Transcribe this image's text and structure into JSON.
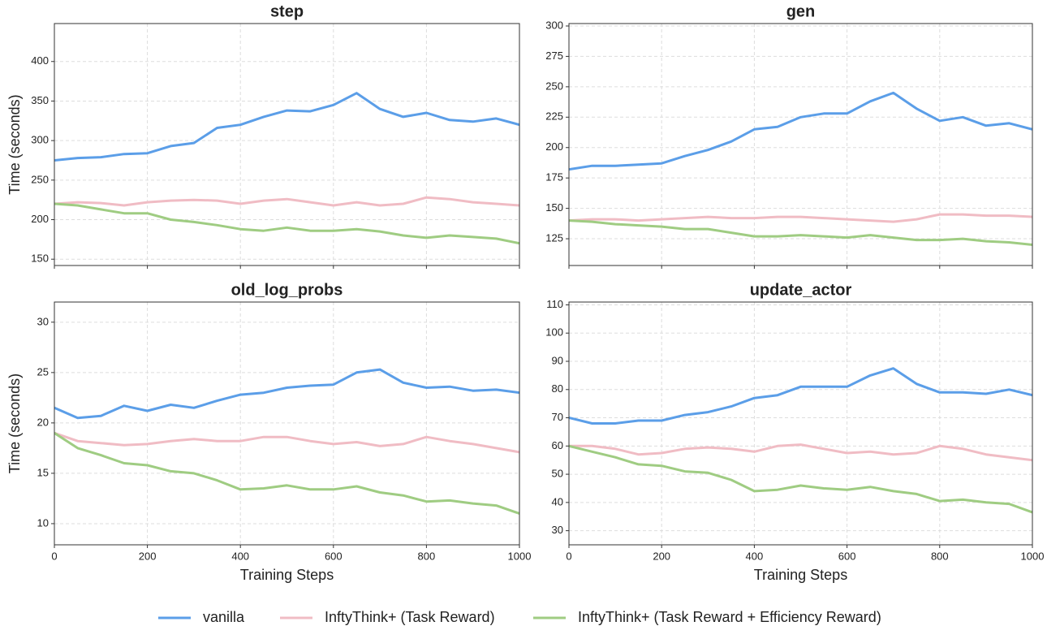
{
  "legend": [
    {
      "name": "vanilla",
      "color": "#5b9ee8"
    },
    {
      "name": "InftyThink+ (Task Reward)",
      "color": "#f0bcc4"
    },
    {
      "name": "InftyThink+ (Task Reward + Efficiency Reward)",
      "color": "#9fcc82"
    }
  ],
  "chart_data": [
    {
      "type": "line",
      "title": "step",
      "ylabel": "Time (seconds)",
      "grid": true,
      "show_xtick_labels": false,
      "x": [
        0,
        50,
        100,
        150,
        200,
        250,
        300,
        350,
        400,
        450,
        500,
        550,
        600,
        650,
        700,
        750,
        800,
        850,
        900,
        950,
        1000
      ],
      "xlim": [
        0,
        1000
      ],
      "xticks": [
        0,
        200,
        400,
        600,
        800,
        1000
      ],
      "ylim": [
        142,
        448
      ],
      "yticks": [
        150,
        200,
        250,
        300,
        350,
        400
      ],
      "series": [
        {
          "values": [
            275,
            278,
            279,
            283,
            284,
            293,
            297,
            316,
            320,
            330,
            338,
            337,
            345,
            360,
            340,
            330,
            335,
            326,
            324,
            328,
            320
          ]
        },
        {
          "values": [
            220,
            222,
            221,
            218,
            222,
            224,
            225,
            224,
            220,
            224,
            226,
            222,
            218,
            222,
            218,
            220,
            228,
            226,
            222,
            220,
            218
          ]
        },
        {
          "values": [
            220,
            218,
            213,
            208,
            208,
            200,
            197,
            193,
            188,
            186,
            190,
            186,
            186,
            188,
            185,
            180,
            177,
            180,
            178,
            176,
            170
          ]
        }
      ]
    },
    {
      "type": "line",
      "title": "gen",
      "grid": true,
      "show_xtick_labels": false,
      "x": [
        0,
        50,
        100,
        150,
        200,
        250,
        300,
        350,
        400,
        450,
        500,
        550,
        600,
        650,
        700,
        750,
        800,
        850,
        900,
        950,
        1000
      ],
      "xlim": [
        0,
        1000
      ],
      "xticks": [
        0,
        200,
        400,
        600,
        800,
        1000
      ],
      "ylim": [
        103,
        302
      ],
      "yticks": [
        125,
        150,
        175,
        200,
        225,
        250,
        275,
        300
      ],
      "series": [
        {
          "values": [
            182,
            185,
            185,
            186,
            187,
            193,
            198,
            205,
            215,
            217,
            225,
            228,
            228,
            238,
            245,
            232,
            222,
            225,
            218,
            220,
            215
          ]
        },
        {
          "values": [
            140,
            141,
            141,
            140,
            141,
            142,
            143,
            142,
            142,
            143,
            143,
            142,
            141,
            140,
            139,
            141,
            145,
            145,
            144,
            144,
            143
          ]
        },
        {
          "values": [
            140,
            139,
            137,
            136,
            135,
            133,
            133,
            130,
            127,
            127,
            128,
            127,
            126,
            128,
            126,
            124,
            124,
            125,
            123,
            122,
            120
          ]
        }
      ]
    },
    {
      "type": "line",
      "title": "old_log_probs",
      "ylabel": "Time (seconds)",
      "xlabel": "Training Steps",
      "grid": true,
      "show_xtick_labels": true,
      "x": [
        0,
        50,
        100,
        150,
        200,
        250,
        300,
        350,
        400,
        450,
        500,
        550,
        600,
        650,
        700,
        750,
        800,
        850,
        900,
        950,
        1000
      ],
      "xlim": [
        0,
        1000
      ],
      "xticks": [
        0,
        200,
        400,
        600,
        800,
        1000
      ],
      "ylim": [
        7.9,
        32
      ],
      "yticks": [
        10,
        15,
        20,
        25,
        30
      ],
      "series": [
        {
          "values": [
            21.5,
            20.5,
            20.7,
            21.7,
            21.2,
            21.8,
            21.5,
            22.2,
            22.8,
            23,
            23.5,
            23.7,
            23.8,
            25,
            25.3,
            24,
            23.5,
            23.6,
            23.2,
            23.3,
            23
          ]
        },
        {
          "values": [
            19,
            18.2,
            18,
            17.8,
            17.9,
            18.2,
            18.4,
            18.2,
            18.2,
            18.6,
            18.6,
            18.2,
            17.9,
            18.1,
            17.7,
            17.9,
            18.6,
            18.2,
            17.9,
            17.5,
            17.1
          ]
        },
        {
          "values": [
            19,
            17.5,
            16.8,
            16,
            15.8,
            15.2,
            15,
            14.3,
            13.4,
            13.5,
            13.8,
            13.4,
            13.4,
            13.7,
            13.1,
            12.8,
            12.2,
            12.3,
            12,
            11.8,
            11
          ]
        }
      ]
    },
    {
      "type": "line",
      "title": "update_actor",
      "xlabel": "Training Steps",
      "grid": true,
      "show_xtick_labels": true,
      "x": [
        0,
        50,
        100,
        150,
        200,
        250,
        300,
        350,
        400,
        450,
        500,
        550,
        600,
        650,
        700,
        750,
        800,
        850,
        900,
        950,
        1000
      ],
      "xlim": [
        0,
        1000
      ],
      "xticks": [
        0,
        200,
        400,
        600,
        800,
        1000
      ],
      "ylim": [
        25,
        111
      ],
      "yticks": [
        30,
        40,
        50,
        60,
        70,
        80,
        90,
        100,
        110
      ],
      "series": [
        {
          "values": [
            70,
            68,
            68,
            69,
            69,
            71,
            72,
            74,
            77,
            78,
            81,
            81,
            81,
            85,
            87.5,
            82,
            79,
            79,
            78.5,
            80,
            78
          ]
        },
        {
          "values": [
            60,
            60,
            59,
            57,
            57.5,
            59,
            59.5,
            59,
            58,
            60,
            60.5,
            59,
            57.5,
            58,
            57,
            57.5,
            60,
            59,
            57,
            56,
            55
          ]
        },
        {
          "values": [
            60,
            58,
            56,
            53.5,
            53,
            51,
            50.5,
            48,
            44,
            44.5,
            46,
            45,
            44.5,
            45.5,
            44,
            43,
            40.5,
            41,
            40,
            39.5,
            36.5
          ]
        }
      ]
    }
  ]
}
